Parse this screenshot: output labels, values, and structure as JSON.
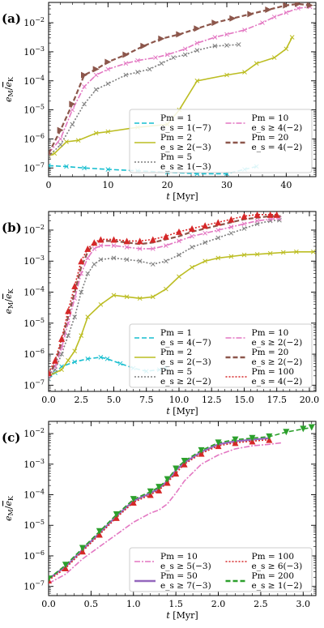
{
  "chart_data": [
    {
      "type": "line",
      "panel_label": "(a)",
      "xlabel": "t [Myr]",
      "ylabel": "e_M/ē_K",
      "xlim": [
        0,
        45
      ],
      "ylim_log10": [
        -7.3,
        -1.3
      ],
      "yscale": "log",
      "xticks": [
        0,
        10,
        20,
        30,
        40
      ],
      "yticks_exp": [
        -7,
        -6,
        -5,
        -4,
        -3,
        -2
      ],
      "legend": "lower-right, 2 columns",
      "series": [
        {
          "name": "Pm = 1",
          "sub": "e_s = 1(−7)",
          "color": "#17becf",
          "style": "dashed",
          "marker": "x",
          "x": [
            0,
            3,
            6,
            10,
            15,
            20,
            25,
            30,
            33,
            35
          ],
          "y_exp": [
            -6.92,
            -6.95,
            -7.0,
            -7.05,
            -7.1,
            -7.15,
            -7.2,
            -7.2,
            -7.05,
            -6.95
          ]
        },
        {
          "name": "Pm = 2",
          "sub": "e_s ≥ 2(−3)",
          "color": "#bcbd22",
          "style": "solid",
          "marker": "x",
          "x": [
            0,
            1,
            3,
            5,
            8,
            10,
            15,
            20,
            22,
            25,
            30,
            33,
            35,
            38,
            40,
            41
          ],
          "y_exp": [
            -6.6,
            -6.5,
            -6.1,
            -6.05,
            -5.8,
            -5.75,
            -5.6,
            -5.5,
            -5.0,
            -4.0,
            -3.8,
            -3.7,
            -3.4,
            -3.2,
            -2.9,
            -2.5
          ]
        },
        {
          "name": "Pm = 5",
          "sub": "e_s ≥ 1(−3)",
          "color": "#7f7f7f",
          "style": "dotted",
          "marker": "x",
          "x": [
            0,
            2,
            4,
            6,
            8,
            10,
            13,
            15,
            17,
            19,
            21,
            23,
            25,
            28,
            30,
            32
          ],
          "y_exp": [
            -6.6,
            -6.2,
            -5.5,
            -4.8,
            -4.3,
            -4.1,
            -3.8,
            -3.7,
            -3.6,
            -3.4,
            -3.2,
            -3.1,
            -2.95,
            -2.8,
            -2.78,
            -2.75
          ]
        },
        {
          "name": "Pm = 10",
          "sub": "e_s ≥ 4(−2)",
          "color": "#e377c2",
          "style": "dashdot",
          "marker": "x",
          "x": [
            0,
            2,
            4,
            6,
            8,
            10,
            13,
            15,
            18,
            20,
            23,
            25,
            28,
            30,
            33,
            36,
            38,
            40,
            42,
            44
          ],
          "y_exp": [
            -6.5,
            -6.0,
            -5.0,
            -4.2,
            -3.8,
            -3.6,
            -3.4,
            -3.3,
            -3.2,
            -3.1,
            -2.9,
            -2.7,
            -2.5,
            -2.4,
            -2.25,
            -2.0,
            -1.8,
            -1.65,
            -1.5,
            -1.45
          ]
        },
        {
          "name": "Pm = 20",
          "sub": "e_s = 4(−2)",
          "color": "#8c564b",
          "style": "dashed",
          "marker": "triangle-right",
          "x": [
            0,
            2,
            4,
            6,
            8,
            10,
            13,
            16,
            19,
            22,
            25,
            28,
            31,
            34,
            37,
            40,
            42,
            44
          ],
          "y_exp": [
            -6.5,
            -5.7,
            -4.8,
            -3.8,
            -3.6,
            -3.35,
            -3.1,
            -2.8,
            -2.55,
            -2.4,
            -2.2,
            -2.0,
            -1.85,
            -1.7,
            -1.55,
            -1.4,
            -1.35,
            -1.4
          ]
        }
      ]
    },
    {
      "type": "line",
      "panel_label": "(b)",
      "xlabel": "t [Myr]",
      "ylabel": "e_M/ē_K",
      "xlim": [
        0,
        20.5
      ],
      "ylim_log10": [
        -7.2,
        -1.4
      ],
      "yscale": "log",
      "xticks": [
        0.0,
        2.5,
        5.0,
        7.5,
        10.0,
        12.5,
        15.0,
        17.5,
        20.0
      ],
      "yticks_exp": [
        -7,
        -6,
        -5,
        -4,
        -3,
        -2
      ],
      "legend": "lower-right, 2 columns",
      "series": [
        {
          "name": "Pm = 1",
          "sub": "e_s = 4(−7)",
          "color": "#17becf",
          "style": "dashed",
          "marker": "x",
          "x": [
            0,
            0.5,
            1,
            2,
            3,
            4,
            4.5,
            5.5,
            6.5,
            7.5,
            8.5,
            9
          ],
          "y_exp": [
            -6.8,
            -6.6,
            -6.4,
            -6.25,
            -6.15,
            -6.1,
            -6.15,
            -6.3,
            -6.45,
            -6.55,
            -6.5,
            -6.45
          ]
        },
        {
          "name": "Pm = 2",
          "sub": "e_s = 2(−3)",
          "color": "#bcbd22",
          "style": "solid",
          "marker": "x",
          "x": [
            0,
            1,
            1.5,
            2,
            2.5,
            3,
            4,
            5,
            6,
            7,
            8,
            9,
            10,
            11,
            12,
            13,
            14,
            15,
            16,
            17,
            18,
            19,
            20.3
          ],
          "y_exp": [
            -6.7,
            -6.5,
            -6.2,
            -5.9,
            -5.4,
            -4.8,
            -4.4,
            -4.1,
            -4.15,
            -4.2,
            -4.15,
            -3.9,
            -3.5,
            -3.2,
            -3.0,
            -2.9,
            -2.85,
            -2.8,
            -2.78,
            -2.75,
            -2.72,
            -2.7,
            -2.7
          ]
        },
        {
          "name": "Pm = 5",
          "sub": "e_s ≥ 2(−2)",
          "color": "#7f7f7f",
          "style": "dotted",
          "marker": "x",
          "x": [
            0,
            0.5,
            1,
            1.5,
            2,
            2.5,
            3,
            3.5,
            4,
            5,
            6,
            7,
            8,
            9,
            10,
            11,
            12,
            13,
            14,
            15,
            16,
            17,
            17.7
          ],
          "y_exp": [
            -6.8,
            -6.5,
            -6.0,
            -5.4,
            -4.8,
            -4.0,
            -3.4,
            -3.1,
            -2.95,
            -2.9,
            -2.95,
            -3.0,
            -3.1,
            -3.0,
            -2.8,
            -2.55,
            -2.4,
            -2.25,
            -2.1,
            -1.95,
            -1.8,
            -1.7,
            -1.68
          ]
        },
        {
          "name": "Pm = 10",
          "sub": "e_s ≥ 2(−2)",
          "color": "#e377c2",
          "style": "dashdot",
          "marker": "x",
          "x": [
            0,
            0.5,
            1,
            1.5,
            2,
            2.5,
            3,
            3.5,
            4,
            5,
            6,
            7,
            8,
            9,
            10,
            11,
            12,
            13,
            14,
            15,
            16,
            17,
            17.7
          ],
          "y_exp": [
            -6.7,
            -6.4,
            -5.8,
            -5.0,
            -4.2,
            -3.4,
            -2.9,
            -2.6,
            -2.5,
            -2.5,
            -2.55,
            -2.6,
            -2.6,
            -2.5,
            -2.35,
            -2.2,
            -2.1,
            -2.0,
            -1.9,
            -1.8,
            -1.7,
            -1.65,
            -1.62
          ]
        },
        {
          "name": "Pm = 20",
          "sub": "e_s ≥ 2(−2)",
          "color": "#8c564b",
          "style": "dashed",
          "marker": "none",
          "x": [
            0,
            0.5,
            1,
            1.5,
            2,
            2.5,
            3,
            3.5,
            4,
            5,
            6,
            7,
            8,
            9,
            10,
            11,
            12,
            13,
            14,
            15,
            16,
            17,
            17.8
          ],
          "y_exp": [
            -6.7,
            -6.3,
            -5.6,
            -4.8,
            -4.0,
            -3.2,
            -2.7,
            -2.45,
            -2.35,
            -2.35,
            -2.4,
            -2.45,
            -2.4,
            -2.3,
            -2.2,
            -2.05,
            -1.95,
            -1.85,
            -1.75,
            -1.65,
            -1.6,
            -1.55,
            -1.55
          ]
        },
        {
          "name": "Pm = 100",
          "sub": "e_s = 4(−2)",
          "color": "#d62728",
          "style": "dotted",
          "marker": "triangle-up",
          "x": [
            0,
            0.5,
            1,
            1.5,
            2,
            2.5,
            3,
            3.5,
            4,
            5,
            6,
            7,
            8,
            9,
            10,
            11,
            12,
            13,
            14,
            15,
            16,
            17,
            17.5
          ],
          "y_exp": [
            -6.6,
            -6.2,
            -5.5,
            -4.6,
            -3.8,
            -3.0,
            -2.6,
            -2.4,
            -2.3,
            -2.3,
            -2.35,
            -2.35,
            -2.3,
            -2.2,
            -2.05,
            -1.95,
            -1.85,
            -1.75,
            -1.65,
            -1.55,
            -1.5,
            -1.5,
            -1.5
          ]
        }
      ]
    },
    {
      "type": "line",
      "panel_label": "(c)",
      "xlabel": "t [Myr]",
      "ylabel": "e_M/ē_K",
      "xlim": [
        0,
        3.15
      ],
      "ylim_log10": [
        -7.3,
        -1.6
      ],
      "yscale": "log",
      "xticks": [
        0.0,
        0.5,
        1.0,
        1.5,
        2.0,
        2.5,
        3.0
      ],
      "yticks_exp": [
        -7,
        -6,
        -5,
        -4,
        -3,
        -2
      ],
      "legend": "lower-right, 2 columns",
      "series": [
        {
          "name": "Pm = 10",
          "sub": "e_s ≥ 5(−3)",
          "color": "#e377c2",
          "style": "dashdot",
          "marker": "none",
          "x": [
            0,
            0.2,
            0.4,
            0.6,
            0.8,
            1.0,
            1.2,
            1.3,
            1.4,
            1.5,
            1.6,
            1.8,
            2.0,
            2.2,
            2.4,
            2.6,
            2.75
          ],
          "y_exp": [
            -6.9,
            -6.6,
            -6.1,
            -5.7,
            -5.3,
            -4.9,
            -4.6,
            -4.5,
            -4.3,
            -3.95,
            -3.55,
            -3.0,
            -2.7,
            -2.5,
            -2.4,
            -2.35,
            -2.3
          ]
        },
        {
          "name": "Pm = 50",
          "sub": "e_s ≥ 7(−3)",
          "color": "#9467bd",
          "style": "solid",
          "marker": "none",
          "x": [
            0,
            0.2,
            0.4,
            0.6,
            0.8,
            1.0,
            1.2,
            1.3,
            1.4,
            1.5,
            1.6,
            1.8,
            2.0,
            2.2,
            2.4,
            2.6
          ],
          "y_exp": [
            -6.75,
            -6.35,
            -5.8,
            -5.25,
            -4.7,
            -4.2,
            -3.95,
            -3.8,
            -3.55,
            -3.2,
            -2.95,
            -2.6,
            -2.35,
            -2.25,
            -2.2,
            -2.15
          ]
        },
        {
          "name": "Pm = 100",
          "sub": "e_s ≥ 6(−3)",
          "color": "#d62728",
          "style": "dotted",
          "marker": "triangle-up",
          "x": [
            0,
            0.2,
            0.4,
            0.6,
            0.8,
            1.0,
            1.2,
            1.3,
            1.4,
            1.5,
            1.6,
            1.8,
            2.0,
            2.2,
            2.4,
            2.6
          ],
          "y_exp": [
            -6.8,
            -6.4,
            -5.85,
            -5.3,
            -4.75,
            -4.25,
            -4.0,
            -3.85,
            -3.6,
            -3.3,
            -3.0,
            -2.65,
            -2.4,
            -2.3,
            -2.25,
            -2.2
          ]
        },
        {
          "name": "Pm = 200",
          "sub": "e_s ≥ 1(−2)",
          "color": "#2ca02c",
          "style": "dashed",
          "marker": "triangle-down",
          "x": [
            0,
            0.2,
            0.4,
            0.6,
            0.8,
            1.0,
            1.2,
            1.3,
            1.4,
            1.5,
            1.6,
            1.8,
            2.0,
            2.2,
            2.4,
            2.6,
            2.8,
            3.0,
            3.1
          ],
          "y_exp": [
            -6.75,
            -6.3,
            -5.75,
            -5.2,
            -4.65,
            -4.15,
            -3.9,
            -3.75,
            -3.5,
            -3.15,
            -2.9,
            -2.55,
            -2.3,
            -2.2,
            -2.15,
            -2.1,
            -1.95,
            -1.85,
            -1.8
          ]
        }
      ]
    }
  ]
}
